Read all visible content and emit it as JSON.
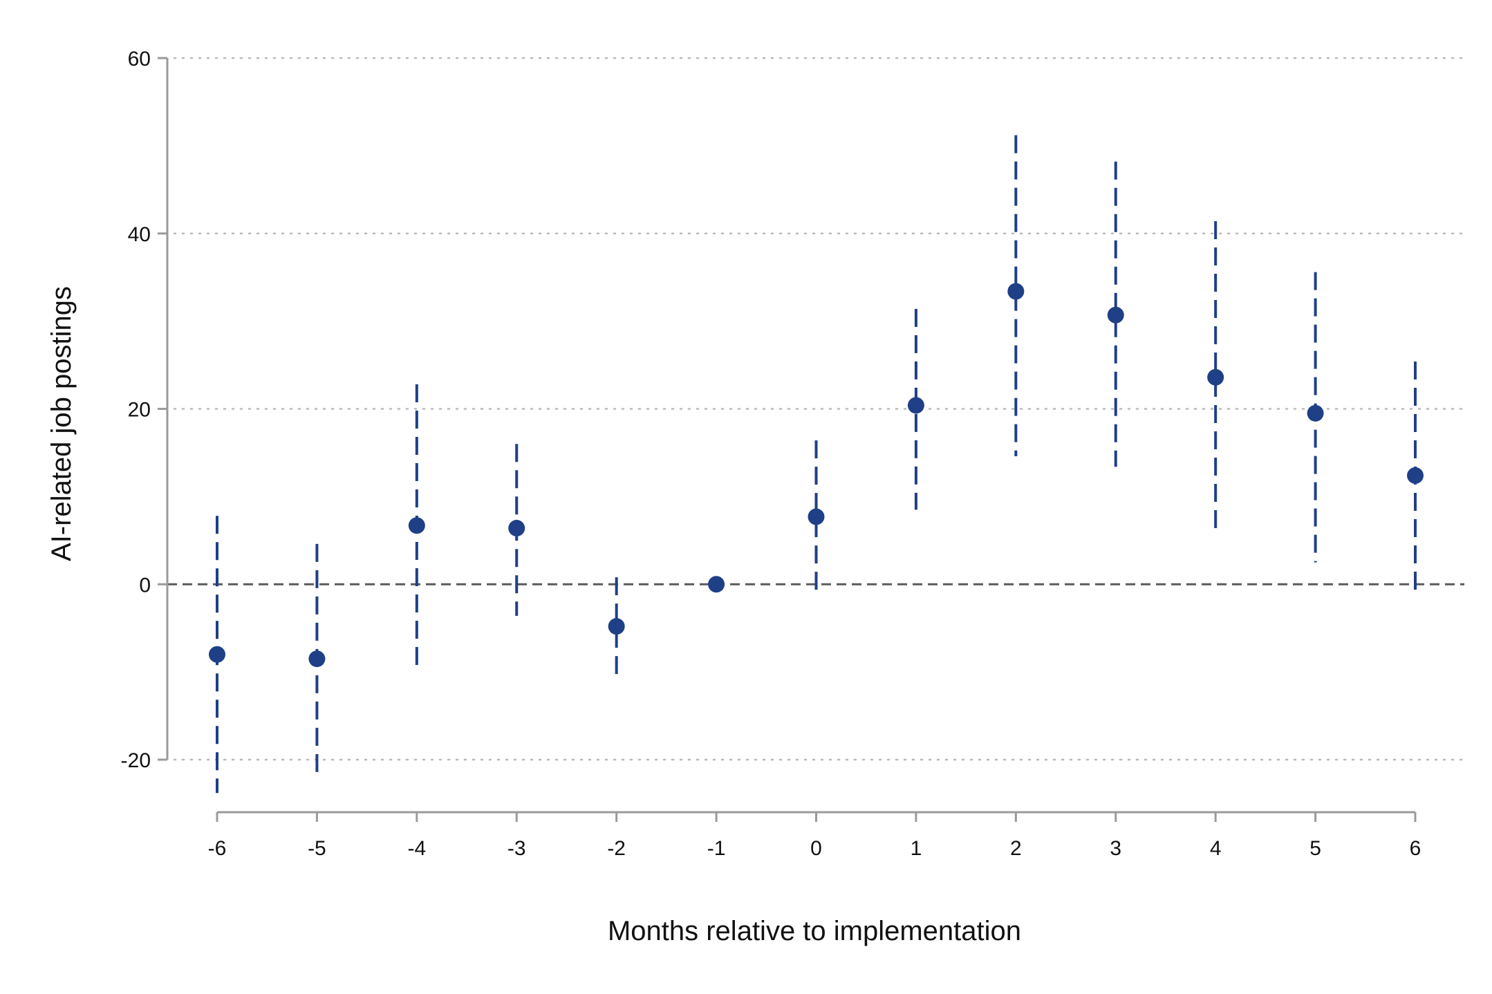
{
  "chart_data": {
    "type": "scatter",
    "xlabel": "Months relative to implementation",
    "ylabel": "AI-related job postings",
    "ylim": [
      -26,
      62
    ],
    "yticks": [
      -20,
      0,
      20,
      40,
      60
    ],
    "xticks": [
      -6,
      -5,
      -4,
      -3,
      -2,
      -1,
      0,
      1,
      2,
      3,
      4,
      5,
      6
    ],
    "xlim": [
      -6.5,
      6.5
    ],
    "grid": "horizontal dotted",
    "reference_line": 0,
    "colors": {
      "marker": "#1f3f86",
      "reference": "#5a5a5a",
      "axis": "#9a9a9a"
    },
    "points": [
      {
        "x": -6,
        "y": -8.0,
        "ci_low": -23.8,
        "ci_high": 7.8
      },
      {
        "x": -5,
        "y": -8.5,
        "ci_low": -21.8,
        "ci_high": 4.6
      },
      {
        "x": -4,
        "y": 6.7,
        "ci_low": -9.5,
        "ci_high": 22.8
      },
      {
        "x": -3,
        "y": 6.4,
        "ci_low": -3.6,
        "ci_high": 16.0
      },
      {
        "x": -2,
        "y": -4.8,
        "ci_low": -10.5,
        "ci_high": 0.8
      },
      {
        "x": -1,
        "y": 0.0,
        "ci_low": 0.0,
        "ci_high": 0.0
      },
      {
        "x": 0,
        "y": 7.7,
        "ci_low": -1.0,
        "ci_high": 16.4
      },
      {
        "x": 1,
        "y": 20.4,
        "ci_low": 8.5,
        "ci_high": 31.4
      },
      {
        "x": 2,
        "y": 33.4,
        "ci_low": 14.6,
        "ci_high": 51.2
      },
      {
        "x": 3,
        "y": 30.7,
        "ci_low": 13.4,
        "ci_high": 48.2
      },
      {
        "x": 4,
        "y": 23.6,
        "ci_low": 5.7,
        "ci_high": 41.4
      },
      {
        "x": 5,
        "y": 19.5,
        "ci_low": 2.5,
        "ci_high": 35.6
      },
      {
        "x": 6,
        "y": 12.4,
        "ci_low": -1.0,
        "ci_high": 25.4
      }
    ]
  }
}
